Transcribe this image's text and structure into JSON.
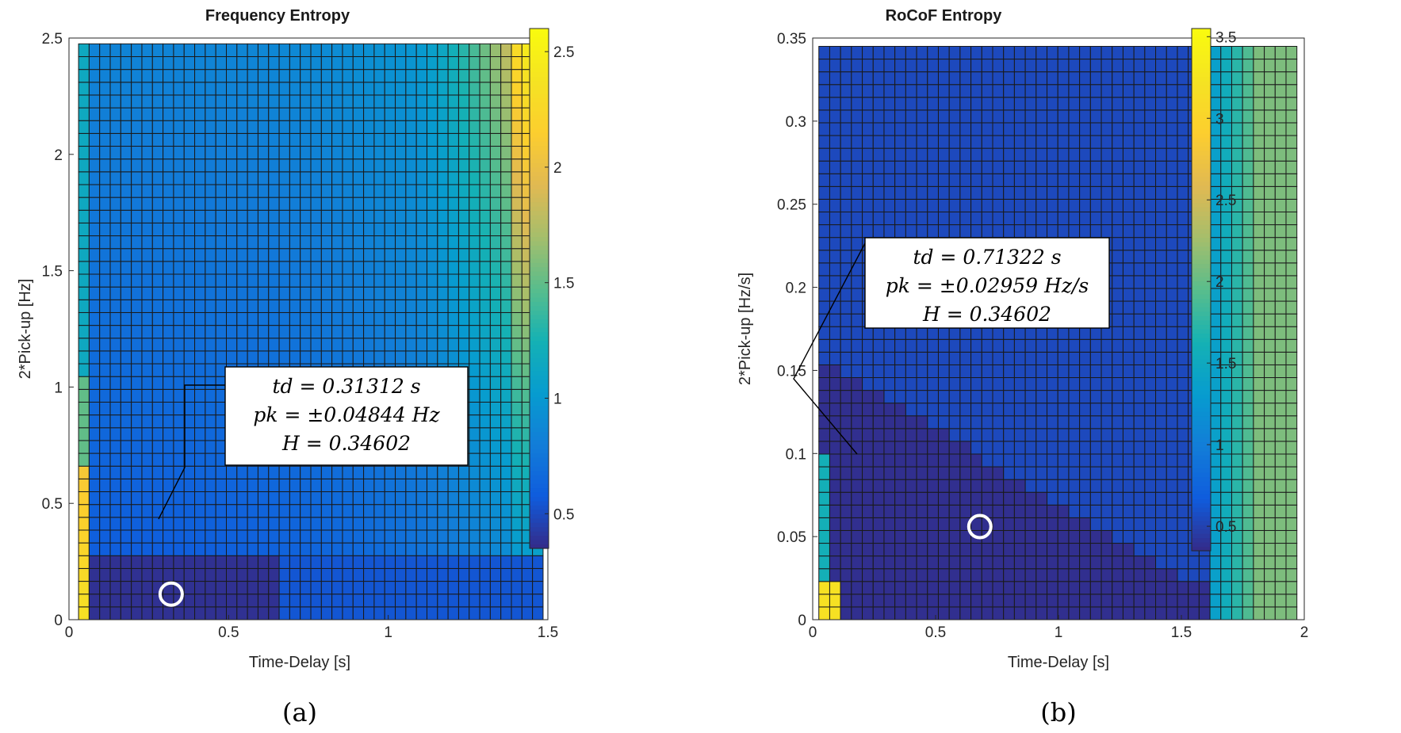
{
  "panels": [
    {
      "label": "(a)",
      "chart_data": {
        "type": "heatmap",
        "title": "Frequency Entropy",
        "xlabel": "Time-Delay [s]",
        "ylabel": "2*Pick-up [Hz]",
        "xlim": [
          0,
          1.5
        ],
        "ylim": [
          0,
          2.5
        ],
        "xticks": [
          "0",
          "0.5",
          "1",
          "1.5"
        ],
        "yticks": [
          "0",
          "0.5",
          "1",
          "1.5",
          "2",
          "2.5"
        ],
        "grid": {
          "x_start": 0.03,
          "x_end": 1.485,
          "ncols": 44,
          "y_start": 0.0,
          "y_end": 2.475,
          "nrows": 45
        },
        "colorbar": {
          "min": 0.35,
          "max": 2.6,
          "ticks": [
            "0.5",
            "1",
            "1.5",
            "2",
            "2.5"
          ],
          "tick_values": [
            0.5,
            1,
            1.5,
            2,
            2.5
          ],
          "colormap": "parula"
        },
        "marker": {
          "x": 0.32,
          "y": 0.11,
          "shape": "circle"
        },
        "annotation": {
          "lines": [
            "td = 0.31312 s",
            "pk = ±0.04844 Hz",
            "H = 0.34602"
          ]
        }
      }
    },
    {
      "label": "(b)",
      "chart_data": {
        "type": "heatmap",
        "title": "RoCoF Entropy",
        "xlabel": "Time-Delay [s]",
        "ylabel": "2*Pick-up [Hz/s]",
        "xlim": [
          0,
          2
        ],
        "ylim": [
          0,
          0.35
        ],
        "xticks": [
          "0",
          "0.5",
          "1",
          "1.5",
          "2"
        ],
        "yticks": [
          "0",
          "0.05",
          "0.1",
          "0.15",
          "0.2",
          "0.25",
          "0.3",
          "0.35"
        ],
        "grid": {
          "x_start": 0.025,
          "x_end": 1.97,
          "ncols": 44,
          "y_start": 0.0,
          "y_end": 0.345,
          "nrows": 45
        },
        "colorbar": {
          "min": 0.35,
          "max": 3.55,
          "ticks": [
            "0.5",
            "1",
            "1.5",
            "2",
            "2.5",
            "3",
            "3.5"
          ],
          "tick_values": [
            0.5,
            1,
            1.5,
            2,
            2.5,
            3,
            3.5
          ],
          "colormap": "parula"
        },
        "marker": {
          "x": 0.68,
          "y": 0.056,
          "shape": "circle"
        },
        "annotation": {
          "lines": [
            "td = 0.71322 s",
            "pk = ±0.02959 Hz/s",
            "H = 0.34602"
          ]
        }
      }
    }
  ]
}
